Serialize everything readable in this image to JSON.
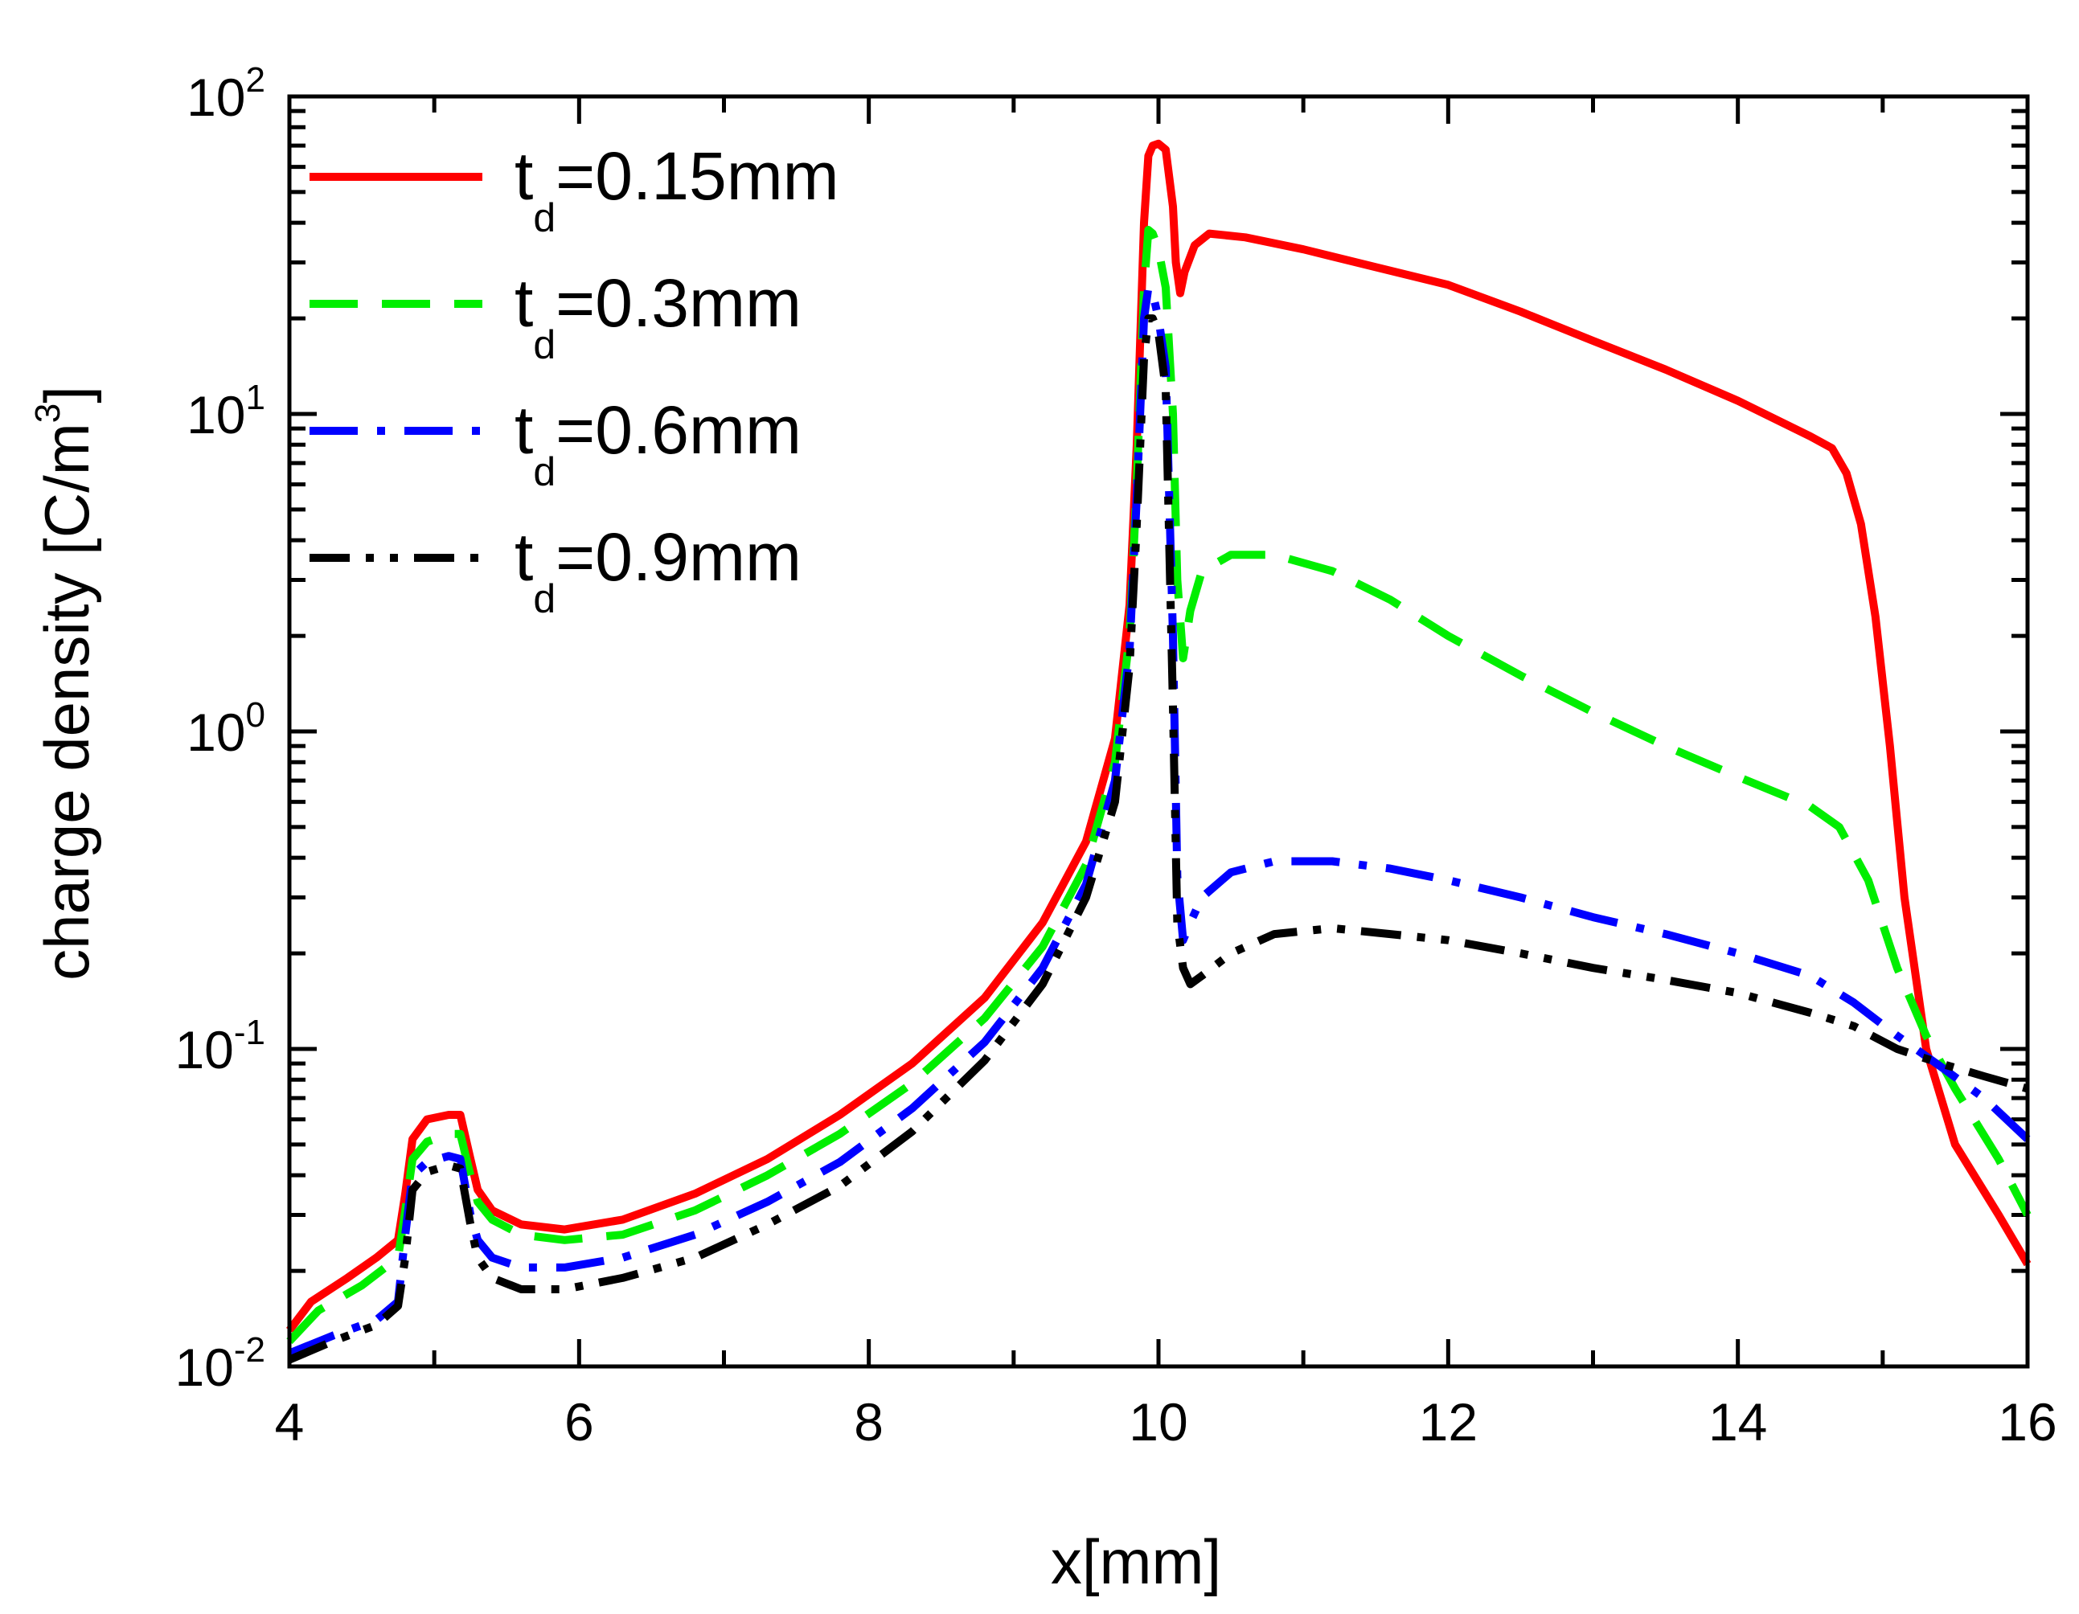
{
  "chart_data": {
    "type": "line",
    "xscale": "linear",
    "yscale": "log",
    "xlabel": "x[mm]",
    "ylabel": "charge density [C/m",
    "ylabel_sup": "3",
    "ylabel_close": "]",
    "xlim": [
      4,
      16
    ],
    "ylim": [
      0.01,
      100
    ],
    "x_ticks": [
      4,
      6,
      8,
      10,
      12,
      14,
      16
    ],
    "y_ticks": [
      {
        "value": 0.01,
        "base": "10",
        "exp": "-2"
      },
      {
        "value": 0.1,
        "base": "10",
        "exp": "-1"
      },
      {
        "value": 1,
        "base": "10",
        "exp": "0"
      },
      {
        "value": 10,
        "base": "10",
        "exp": "1"
      },
      {
        "value": 100,
        "base": "10",
        "exp": "2"
      }
    ],
    "legend_position": "top-left",
    "series": [
      {
        "name": "td=0.15mm",
        "label_main": "t",
        "label_sub": "d",
        "label_rest": "=0.15mm",
        "color": "#ff0000",
        "dash": "solid",
        "x": [
          4.0,
          4.15,
          4.4,
          4.6,
          4.75,
          4.8,
          4.85,
          4.95,
          5.1,
          5.18,
          5.25,
          5.3,
          5.4,
          5.6,
          5.9,
          6.3,
          6.8,
          7.3,
          7.8,
          8.3,
          8.8,
          9.2,
          9.5,
          9.7,
          9.8,
          9.85,
          9.9,
          9.93,
          9.96,
          10.0,
          10.05,
          10.1,
          10.12,
          10.15,
          10.18,
          10.25,
          10.35,
          10.6,
          11.0,
          11.5,
          12.0,
          12.5,
          13.0,
          13.5,
          14.0,
          14.5,
          14.65,
          14.75,
          14.85,
          14.95,
          15.05,
          15.15,
          15.3,
          15.5,
          15.8,
          16.0
        ],
        "y": [
          0.013,
          0.016,
          0.019,
          0.022,
          0.025,
          0.035,
          0.052,
          0.06,
          0.062,
          0.062,
          0.045,
          0.036,
          0.031,
          0.028,
          0.027,
          0.029,
          0.035,
          0.045,
          0.062,
          0.09,
          0.145,
          0.25,
          0.45,
          0.95,
          2.5,
          8.0,
          40.0,
          65.0,
          70.0,
          71.0,
          68.0,
          45.0,
          30.0,
          24.0,
          28.0,
          34.0,
          37.0,
          36.0,
          33.0,
          29.0,
          25.5,
          21.0,
          17.0,
          13.8,
          11.0,
          8.5,
          7.8,
          6.5,
          4.5,
          2.3,
          0.9,
          0.3,
          0.1,
          0.05,
          0.03,
          0.021
        ]
      },
      {
        "name": "td=0.3mm",
        "label_main": "t",
        "label_sub": "d",
        "label_rest": "=0.3mm",
        "color": "#00ee00",
        "dash": "dash",
        "x": [
          4.0,
          4.2,
          4.5,
          4.75,
          4.8,
          4.85,
          4.95,
          5.1,
          5.18,
          5.25,
          5.3,
          5.4,
          5.6,
          5.9,
          6.3,
          6.8,
          7.3,
          7.8,
          8.3,
          8.8,
          9.2,
          9.5,
          9.7,
          9.8,
          9.85,
          9.9,
          9.93,
          9.96,
          10.0,
          10.05,
          10.1,
          10.13,
          10.17,
          10.22,
          10.3,
          10.5,
          10.8,
          11.2,
          11.6,
          12.0,
          12.5,
          13.0,
          13.5,
          14.0,
          14.5,
          14.7,
          14.9,
          15.1,
          15.3,
          15.5,
          15.8,
          16.0
        ],
        "y": [
          0.012,
          0.015,
          0.018,
          0.022,
          0.031,
          0.045,
          0.051,
          0.054,
          0.054,
          0.04,
          0.033,
          0.029,
          0.026,
          0.025,
          0.026,
          0.031,
          0.04,
          0.054,
          0.078,
          0.125,
          0.21,
          0.38,
          0.8,
          2.0,
          6.0,
          25.0,
          38.0,
          37.0,
          33.0,
          25.0,
          10.0,
          3.0,
          1.7,
          2.4,
          3.2,
          3.6,
          3.6,
          3.2,
          2.6,
          2.0,
          1.5,
          1.15,
          0.9,
          0.72,
          0.58,
          0.5,
          0.34,
          0.18,
          0.11,
          0.075,
          0.045,
          0.03
        ]
      },
      {
        "name": "td=0.6mm",
        "label_main": "t",
        "label_sub": "d",
        "label_rest": "=0.6mm",
        "color": "#0000ff",
        "dash": "dashdot",
        "x": [
          4.0,
          4.3,
          4.6,
          4.75,
          4.8,
          4.85,
          4.95,
          5.1,
          5.18,
          5.25,
          5.3,
          5.4,
          5.6,
          5.9,
          6.3,
          6.8,
          7.3,
          7.8,
          8.3,
          8.8,
          9.2,
          9.5,
          9.7,
          9.8,
          9.85,
          9.9,
          9.93,
          9.96,
          10.0,
          10.05,
          10.1,
          10.13,
          10.17,
          10.22,
          10.3,
          10.5,
          10.8,
          11.2,
          11.6,
          12.0,
          12.5,
          13.0,
          13.5,
          14.0,
          14.5,
          14.8,
          15.1,
          15.4,
          15.7,
          16.0
        ],
        "y": [
          0.011,
          0.0125,
          0.014,
          0.016,
          0.026,
          0.04,
          0.044,
          0.046,
          0.045,
          0.03,
          0.025,
          0.022,
          0.0205,
          0.0205,
          0.022,
          0.026,
          0.033,
          0.044,
          0.065,
          0.105,
          0.18,
          0.33,
          0.7,
          1.8,
          5.5,
          20.0,
          25.0,
          24.0,
          20.0,
          14.0,
          2.0,
          0.35,
          0.22,
          0.25,
          0.3,
          0.36,
          0.39,
          0.39,
          0.37,
          0.34,
          0.3,
          0.26,
          0.23,
          0.2,
          0.17,
          0.14,
          0.11,
          0.088,
          0.07,
          0.052
        ]
      },
      {
        "name": "td=0.9mm",
        "label_main": "t",
        "label_sub": "d",
        "label_rest": "=0.9mm",
        "color": "#000000",
        "dash": "dashdotdot",
        "x": [
          4.0,
          4.3,
          4.6,
          4.75,
          4.8,
          4.85,
          4.95,
          5.1,
          5.18,
          5.25,
          5.3,
          5.4,
          5.6,
          5.9,
          6.3,
          6.8,
          7.3,
          7.8,
          8.3,
          8.8,
          9.2,
          9.5,
          9.7,
          9.8,
          9.85,
          9.9,
          9.93,
          9.96,
          10.0,
          10.05,
          10.1,
          10.13,
          10.17,
          10.22,
          10.3,
          10.5,
          10.8,
          11.2,
          11.6,
          12.0,
          12.5,
          13.0,
          13.5,
          14.0,
          14.5,
          14.8,
          15.1,
          15.4,
          15.7,
          16.0
        ],
        "y": [
          0.0105,
          0.012,
          0.0135,
          0.0155,
          0.022,
          0.036,
          0.041,
          0.043,
          0.042,
          0.028,
          0.022,
          0.019,
          0.0175,
          0.0175,
          0.019,
          0.022,
          0.028,
          0.037,
          0.055,
          0.092,
          0.16,
          0.3,
          0.6,
          1.6,
          4.5,
          15.0,
          20.0,
          20.0,
          18.0,
          12.0,
          1.2,
          0.25,
          0.18,
          0.16,
          0.17,
          0.2,
          0.23,
          0.24,
          0.23,
          0.22,
          0.2,
          0.18,
          0.165,
          0.15,
          0.13,
          0.118,
          0.1,
          0.09,
          0.082,
          0.075
        ]
      }
    ]
  }
}
